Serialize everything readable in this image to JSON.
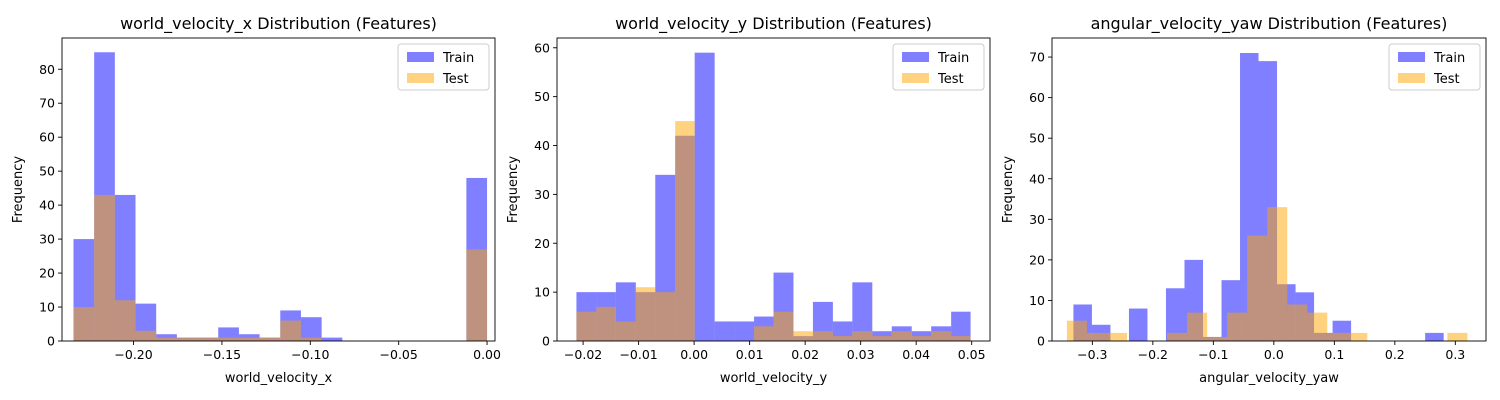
{
  "colors": {
    "train": "#0000ff",
    "test": "#ffa500",
    "alpha": 0.5
  },
  "chart_data": [
    {
      "type": "bar",
      "subtype": "histogram-overlay",
      "title": "world_velocity_x Distribution (Features)",
      "xlabel": "world_velocity_x",
      "ylabel": "Frequency",
      "xlim": [
        -0.2405,
        0.0045
      ],
      "ylim": [
        0,
        89.2
      ],
      "xticks": [
        -0.2,
        -0.15,
        -0.1,
        -0.05,
        0.0
      ],
      "xtick_labels": [
        "−0.20",
        "−0.15",
        "−0.10",
        "−0.05",
        "0.00"
      ],
      "yticks": [
        0,
        10,
        20,
        30,
        40,
        50,
        60,
        70,
        80
      ],
      "ytick_labels": [
        "0",
        "10",
        "20",
        "30",
        "40",
        "50",
        "60",
        "70",
        "80"
      ],
      "legend": {
        "position": "top-right",
        "entries": [
          "Train",
          "Test"
        ]
      },
      "grid": false,
      "series": [
        {
          "name": "Train",
          "color": "#0000ff",
          "bins": [
            -0.234,
            -0.2223,
            -0.2106,
            -0.1989,
            -0.1872,
            -0.1755,
            -0.1638,
            -0.1521,
            -0.1404,
            -0.1287,
            -0.117,
            -0.1053,
            -0.0936,
            -0.0819,
            -0.0702,
            -0.0585,
            -0.0468,
            -0.0351,
            -0.0234,
            -0.0117,
            0.0
          ],
          "values": [
            30,
            85,
            43,
            11,
            2,
            1,
            1,
            4,
            2,
            1,
            9,
            7,
            1,
            0,
            0,
            0,
            0,
            0,
            0,
            48
          ]
        },
        {
          "name": "Test",
          "color": "#ffa500",
          "bins": [
            -0.234,
            -0.2223,
            -0.2106,
            -0.1989,
            -0.1872,
            -0.1755,
            -0.1638,
            -0.1521,
            -0.1404,
            -0.1287,
            -0.117,
            -0.1053,
            -0.0936,
            -0.0819,
            -0.0702,
            -0.0585,
            -0.0468,
            -0.0351,
            -0.0234,
            -0.0117,
            0.0
          ],
          "values": [
            10,
            43,
            12,
            3,
            1,
            1,
            1,
            1,
            1,
            1,
            6,
            1,
            0,
            0,
            0,
            0,
            0,
            0,
            0,
            27
          ]
        }
      ]
    },
    {
      "type": "bar",
      "subtype": "histogram-overlay",
      "title": "world_velocity_y Distribution (Features)",
      "xlabel": "world_velocity_y",
      "ylabel": "Frequency",
      "xlim": [
        -0.0247,
        0.0533
      ],
      "ylim": [
        0,
        62
      ],
      "xticks": [
        -0.02,
        -0.01,
        0.0,
        0.01,
        0.02,
        0.03,
        0.04,
        0.05
      ],
      "xtick_labels": [
        "−0.02",
        "−0.01",
        "0.00",
        "0.01",
        "0.02",
        "0.03",
        "0.04",
        "0.05"
      ],
      "yticks": [
        0,
        10,
        20,
        30,
        40,
        50,
        60
      ],
      "ytick_labels": [
        "0",
        "10",
        "20",
        "30",
        "40",
        "50",
        "60"
      ],
      "legend": {
        "position": "top-right",
        "entries": [
          "Train",
          "Test"
        ]
      },
      "grid": false,
      "series": [
        {
          "name": "Train",
          "color": "#0000ff",
          "bins": [
            -0.0212,
            -0.0176,
            -0.0141,
            -0.0105,
            -0.007,
            -0.0034,
            0.0001,
            0.0037,
            0.0072,
            0.0108,
            0.0143,
            0.0179,
            0.0214,
            0.025,
            0.0285,
            0.0321,
            0.0356,
            0.0392,
            0.0427,
            0.0463,
            0.0498
          ],
          "values": [
            10,
            10,
            12,
            10,
            34,
            42,
            59,
            4,
            4,
            5,
            14,
            1,
            8,
            4,
            12,
            2,
            3,
            2,
            3,
            6
          ]
        },
        {
          "name": "Test",
          "color": "#ffa500",
          "bins": [
            -0.0212,
            -0.0176,
            -0.0141,
            -0.0105,
            -0.007,
            -0.0034,
            0.0001,
            0.0037,
            0.0072,
            0.0108,
            0.0143,
            0.0179,
            0.0214,
            0.025,
            0.0285,
            0.0321,
            0.0356,
            0.0392,
            0.0427,
            0.0463,
            0.0498
          ],
          "values": [
            6,
            7,
            4,
            11,
            10,
            45,
            0,
            0,
            0,
            3,
            6,
            2,
            2,
            1,
            2,
            1,
            2,
            1,
            2,
            1
          ]
        }
      ]
    },
    {
      "type": "bar",
      "subtype": "histogram-overlay",
      "title": "angular_velocity_yaw Distribution (Features)",
      "xlabel": "angular_velocity_yaw",
      "ylabel": "Frequency",
      "xlim": [
        -0.3667,
        0.3507
      ],
      "ylim": [
        0,
        74.7
      ],
      "xticks": [
        -0.3,
        -0.2,
        -0.1,
        0.0,
        0.1,
        0.2,
        0.3
      ],
      "xtick_labels": [
        "−0.3",
        "−0.2",
        "−0.1",
        "0.0",
        "0.1",
        "0.2",
        "0.3"
      ],
      "yticks": [
        0,
        10,
        20,
        30,
        40,
        50,
        60,
        70
      ],
      "ytick_labels": [
        "0",
        "10",
        "20",
        "30",
        "40",
        "50",
        "60",
        "70"
      ],
      "legend": {
        "position": "top-right",
        "entries": [
          "Train",
          "Test"
        ]
      },
      "grid": false,
      "series": [
        {
          "name": "Train",
          "color": "#0000ff",
          "bins": [
            -0.3313,
            -0.3007,
            -0.2701,
            -0.2395,
            -0.2089,
            -0.1783,
            -0.1477,
            -0.1171,
            -0.0865,
            -0.0559,
            -0.0253,
            0.0053,
            0.0359,
            0.0665,
            0.0971,
            0.1277,
            0.1583,
            0.1889,
            0.2195,
            0.2501,
            0.2807,
            0.3113
          ],
          "values": [
            9,
            4,
            0,
            8,
            0,
            13,
            20,
            1,
            15,
            71,
            69,
            14,
            12,
            2,
            5,
            0,
            0,
            0,
            0,
            2,
            0
          ]
        },
        {
          "name": "Test",
          "color": "#ffa500",
          "bins": [
            -0.342,
            -0.3089,
            -0.2758,
            -0.2427,
            -0.2096,
            -0.1765,
            -0.1434,
            -0.1103,
            -0.0772,
            -0.0441,
            -0.011,
            0.0221,
            0.0552,
            0.0883,
            0.1214,
            0.1545,
            0.1876,
            0.2207,
            0.2538,
            0.2869,
            0.32
          ],
          "values": [
            5,
            2,
            2,
            0,
            0,
            2,
            7,
            1,
            7,
            26,
            33,
            9,
            7,
            2,
            2,
            0,
            0,
            0,
            0,
            2
          ]
        }
      ]
    }
  ]
}
